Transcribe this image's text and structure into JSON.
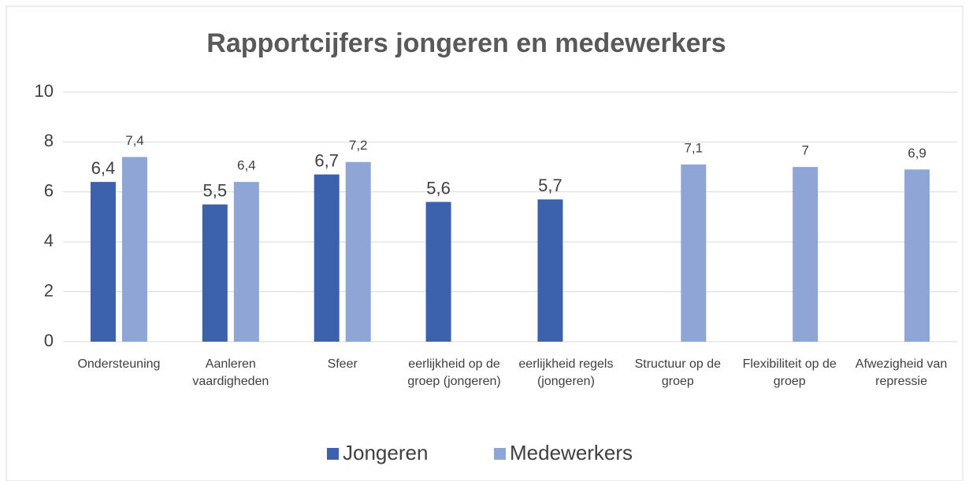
{
  "chart_data": {
    "type": "bar",
    "title": "Rapportcijfers jongeren en medewerkers",
    "categories": [
      "Ondersteuning",
      "Aanleren vaardigheden",
      "Sfeer",
      "eerlijkheid op de groep (jongeren)",
      "eerlijkheid regels (jongeren)",
      "Structuur op de groep",
      "Flexibiliteit op de groep",
      "Afwezigheid van repressie"
    ],
    "series": [
      {
        "name": "Jongeren",
        "color": "#3c62ad",
        "values": [
          6.4,
          5.5,
          6.7,
          5.6,
          5.7,
          null,
          null,
          null
        ],
        "value_labels": [
          "6,4",
          "5,5",
          "6,7",
          "5,6",
          "5,7",
          null,
          null,
          null
        ]
      },
      {
        "name": "Medewerkers",
        "color": "#8fa5d6",
        "values": [
          7.4,
          6.4,
          7.2,
          null,
          null,
          7.1,
          7,
          6.9
        ],
        "value_labels": [
          "7,4",
          "6,4",
          "7,2",
          null,
          null,
          "7,1",
          "7",
          "6,9"
        ]
      }
    ],
    "ylim": [
      0,
      10
    ],
    "yticks": [
      0,
      2,
      4,
      6,
      8,
      10
    ],
    "grid": true,
    "legend": "bottom"
  }
}
